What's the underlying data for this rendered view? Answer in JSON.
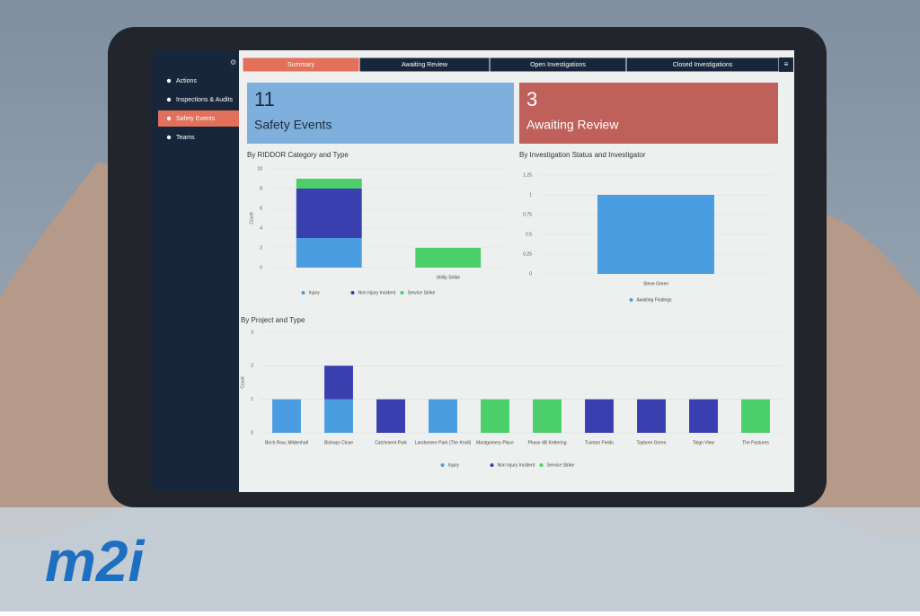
{
  "sidebar": {
    "items": [
      "Actions",
      "Inspections & Audits",
      "Safety Events",
      "Teams"
    ],
    "active": 2
  },
  "tabs": {
    "items": [
      "Summary",
      "Awaiting Review",
      "Open Investigations",
      "Closed Investigations"
    ],
    "active": 0
  },
  "cards": [
    {
      "value": "11",
      "label": "Safety Events",
      "color": "#7fb0dd"
    },
    {
      "value": "3",
      "label": "Awaiting Review",
      "color": "#c0605a"
    }
  ],
  "chart_data": [
    {
      "type": "bar",
      "stacked": true,
      "title": "By RIDDOR Category and Type",
      "ylabel": "Count",
      "categories": [
        null,
        "Utility Strike"
      ],
      "series": [
        {
          "name": "Injury",
          "color": "#4a9de0",
          "values": [
            3,
            null
          ]
        },
        {
          "name": "Non Injury Incident",
          "color": "#3a3fb0",
          "values": [
            5,
            null
          ]
        },
        {
          "name": "Service Strike",
          "color": "#4ccf6a",
          "values": [
            1,
            2
          ]
        }
      ],
      "ylim": [
        0,
        10
      ],
      "yticks": [
        0,
        2,
        4,
        6,
        8,
        10
      ],
      "grid": true
    },
    {
      "type": "bar",
      "stacked": true,
      "title": "By Investigation Status and Investigator",
      "categories": [
        "Steve Green"
      ],
      "series": [
        {
          "name": "Awaiting Findings",
          "color": "#4a9de0",
          "values": [
            1
          ]
        }
      ],
      "ylim": [
        0,
        1.25
      ],
      "yticks": [
        0,
        0.25,
        0.5,
        0.75,
        1,
        1.25
      ],
      "grid": true
    },
    {
      "type": "bar",
      "stacked": true,
      "title": "By Project and Type",
      "ylabel": "Count",
      "categories": [
        "Birch Row, Mildenhall",
        "Bishops Close",
        "Catchment Park",
        "Landsmere Park (The Knoll)",
        "Montgomery Place",
        "Phase 4B Kettering",
        "Turnton Fields",
        "Tayborn Green",
        "Teign View",
        "The Pastures"
      ],
      "series": [
        {
          "name": "Injury",
          "color": "#4a9de0",
          "values": [
            1,
            1,
            null,
            1,
            null,
            null,
            null,
            null,
            null,
            null
          ]
        },
        {
          "name": "Non Injury Incident",
          "color": "#3a3fb0",
          "values": [
            null,
            1,
            1,
            null,
            null,
            null,
            1,
            1,
            1,
            null
          ]
        },
        {
          "name": "Service Strike",
          "color": "#4ccf6a",
          "values": [
            null,
            null,
            null,
            null,
            1,
            1,
            null,
            null,
            null,
            1
          ]
        }
      ],
      "ylim": [
        0,
        3
      ],
      "yticks": [
        0,
        1,
        2,
        3
      ],
      "grid": true
    }
  ],
  "logo": "m2i"
}
